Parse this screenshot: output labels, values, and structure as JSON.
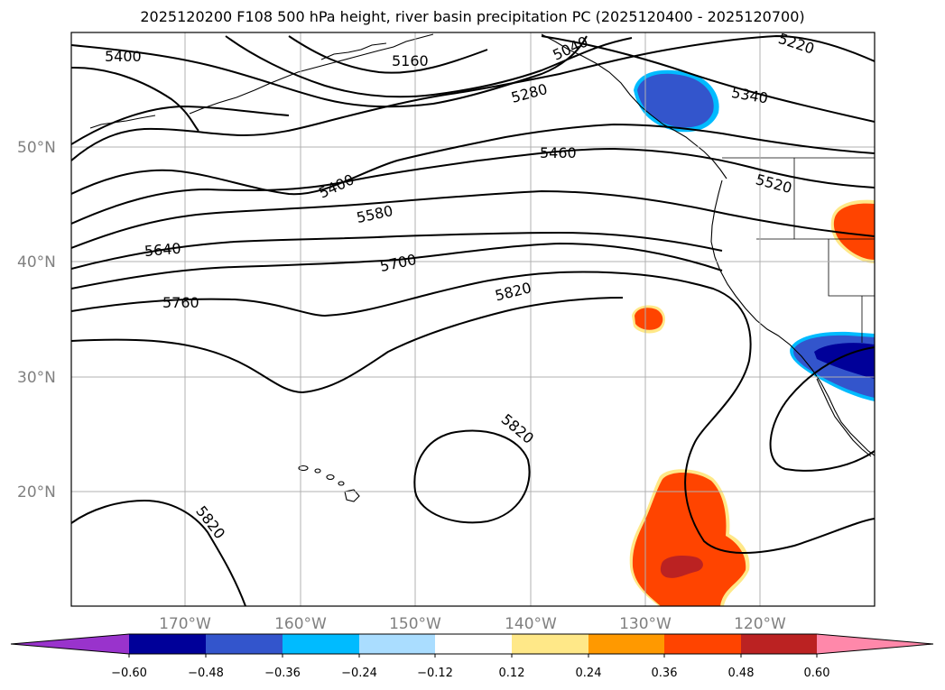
{
  "title": "2025120200 F108 500 hPa height, river basin precipitation PC (2025120400 - 2025120700)",
  "lat_labels": [
    "50°N",
    "40°N",
    "30°N",
    "20°N"
  ],
  "lon_labels": [
    "170°W",
    "160°W",
    "150°W",
    "140°W",
    "130°W",
    "120°W"
  ],
  "contour_labels": [
    "5400",
    "5160",
    "5040",
    "5220",
    "5280",
    "5340",
    "5460",
    "5400",
    "5520",
    "5580",
    "5640",
    "5700",
    "5820",
    "5760",
    "5820",
    "5820"
  ],
  "colorbar": {
    "ticks": [
      "−0.60",
      "−0.48",
      "−0.36",
      "−0.24",
      "−0.12",
      "0.12",
      "0.24",
      "0.36",
      "0.48",
      "0.60"
    ],
    "colors": [
      "#9933cc",
      "#000099",
      "#3355cc",
      "#00bbff",
      "#aaddff",
      "#ffffff",
      "#ffe888",
      "#ff9900",
      "#ff4400",
      "#bb2222",
      "#ff88aa"
    ]
  },
  "colors": {
    "neg_strong": "#000099",
    "neg_mid": "#3355cc",
    "neg_light": "#00bbff",
    "pos_mid": "#ff4400",
    "pos_strong": "#bb2222",
    "pos_light": "#ffe888",
    "grid": "#b0b0b0"
  }
}
